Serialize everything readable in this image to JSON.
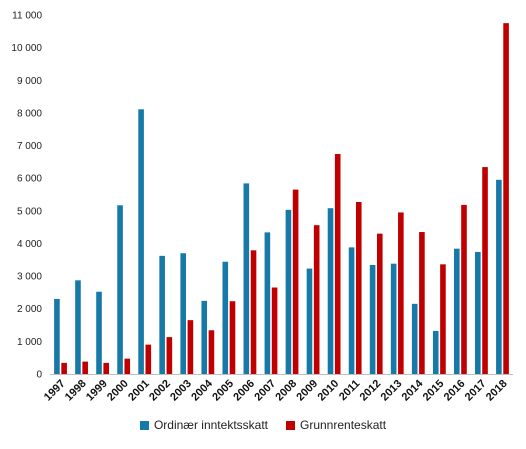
{
  "chart_data": {
    "type": "bar",
    "categories": [
      "1997",
      "1998",
      "1999",
      "2000",
      "2001",
      "2002",
      "2003",
      "2004",
      "2005",
      "2006",
      "2007",
      "2008",
      "2009",
      "2010",
      "2011",
      "2012",
      "2013",
      "2014",
      "2015",
      "2016",
      "2017",
      "2018"
    ],
    "series": [
      {
        "name": "Ordinær inntektsskatt",
        "color": "#1679a7",
        "values": [
          2300,
          2870,
          2520,
          5170,
          8110,
          3620,
          3700,
          2240,
          3440,
          5840,
          4340,
          5030,
          3230,
          5080,
          3880,
          3340,
          3380,
          2150,
          1320,
          3840,
          3740,
          5950
        ]
      },
      {
        "name": "Grunnrenteskatt",
        "color": "#c00000",
        "values": [
          340,
          380,
          340,
          470,
          900,
          1130,
          1650,
          1340,
          2230,
          3790,
          2650,
          5650,
          4560,
          6740,
          5270,
          4300,
          4950,
          4350,
          3360,
          5180,
          6340,
          10750
        ]
      }
    ],
    "yticks": [
      "0",
      "1 000",
      "2 000",
      "3 000",
      "4 000",
      "5 000",
      "6 000",
      "7 000",
      "8 000",
      "9 000",
      "10 000",
      "11 000"
    ],
    "ylim": [
      0,
      11000
    ],
    "grid": false,
    "legend_position": "bottom"
  }
}
